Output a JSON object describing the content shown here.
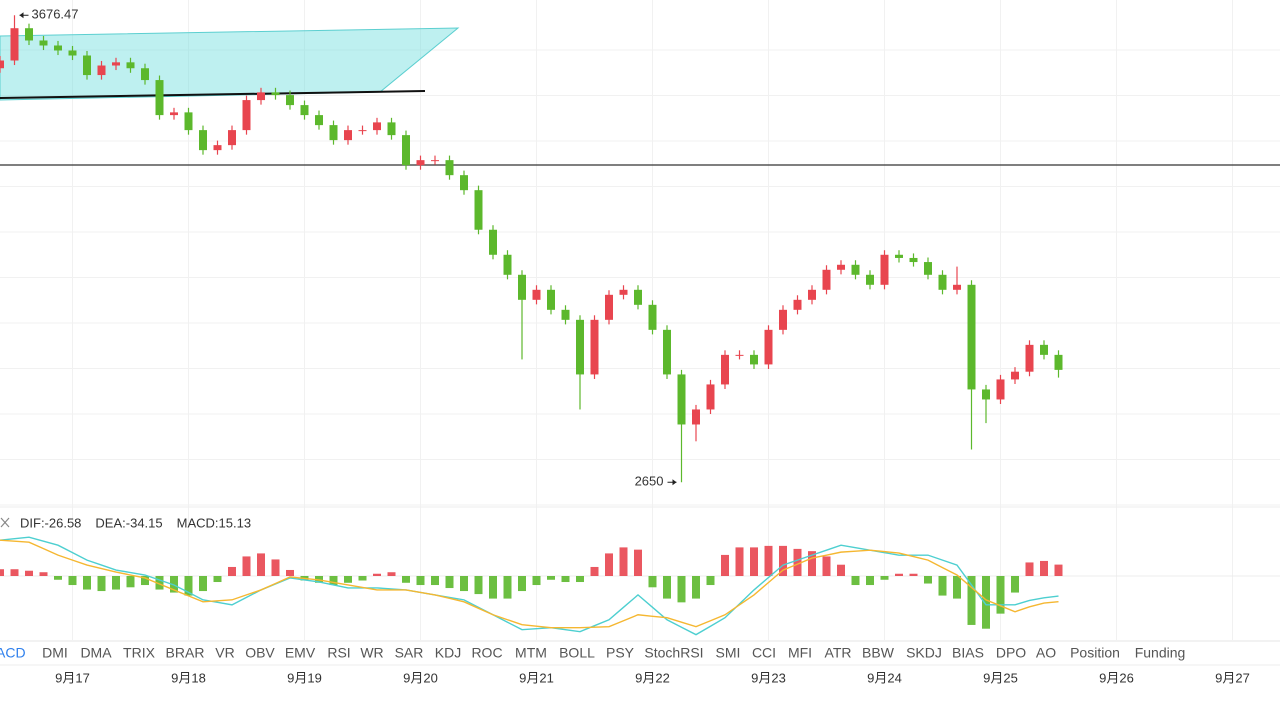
{
  "chart_data": [
    {
      "type": "candlestick",
      "categories": [
        null,
        null,
        null,
        null,
        null,
        "9月17",
        null,
        null,
        null,
        null,
        null,
        null,
        null,
        "9月18",
        null,
        null,
        null,
        null,
        null,
        null,
        null,
        "9月19",
        null,
        null,
        null,
        null,
        null,
        null,
        null,
        "9月20",
        null,
        null,
        null,
        null,
        null,
        null,
        null,
        "9月21",
        null,
        null,
        null,
        null,
        null,
        null,
        null,
        "9月22",
        null,
        null,
        null,
        null,
        null,
        null,
        null,
        "9月23",
        null,
        null,
        null,
        null,
        null,
        null,
        null,
        "9月24",
        null,
        null,
        null,
        null,
        null,
        null,
        null,
        "9月25",
        null,
        null,
        null,
        null,
        null,
        null,
        null,
        "9月26",
        null,
        null,
        null,
        null,
        null,
        null,
        null,
        "9月27",
        null,
        null
      ],
      "open": [
        3560,
        3577,
        3648,
        3621,
        3610,
        3599,
        3588,
        3545,
        3566,
        3573,
        3560,
        3534,
        3457,
        3463,
        3424,
        3380,
        3391,
        3424,
        3490,
        3507,
        3501,
        3479,
        3457,
        3435,
        3402,
        3424,
        3424,
        3441,
        3413,
        3347,
        3358,
        3358,
        3325,
        3292,
        3205,
        3150,
        3106,
        3051,
        3073,
        3029,
        3007,
        2887,
        3007,
        3062,
        3073,
        3040,
        2985,
        2887,
        2777,
        2810,
        2865,
        2930,
        2930,
        2909,
        2985,
        3029,
        3051,
        3073,
        3117,
        3128,
        3106,
        3084,
        3150,
        3143,
        3134,
        3106,
        3073,
        3084,
        2854,
        2832,
        2876,
        2893,
        2952,
        2930,
        null,
        null,
        null,
        null,
        null,
        null,
        null,
        null,
        null,
        null,
        null,
        null,
        null,
        null
      ],
      "high": [
        3587,
        3676.47,
        3658,
        3631,
        3620,
        3609,
        3598,
        3576,
        3583,
        3583,
        3570,
        3544,
        3473,
        3473,
        3434,
        3401,
        3434,
        3500,
        3517,
        3517,
        3511,
        3489,
        3467,
        3445,
        3434,
        3434,
        3451,
        3451,
        3423,
        3368,
        3368,
        3368,
        3335,
        3302,
        3215,
        3160,
        3116,
        3083,
        3083,
        3039,
        3017,
        3017,
        3072,
        3083,
        3083,
        3050,
        2995,
        2897,
        2820,
        2875,
        2940,
        2940,
        2940,
        2995,
        3039,
        3061,
        3083,
        3127,
        3138,
        3138,
        3116,
        3160,
        3160,
        3153,
        3144,
        3116,
        3124,
        3094,
        2864,
        2886,
        2903,
        2962,
        2962,
        2940,
        null,
        null,
        null,
        null,
        null,
        null,
        null,
        null,
        null,
        null,
        null,
        null,
        null,
        null
      ],
      "low": [
        3550,
        3567,
        3611,
        3600,
        3589,
        3578,
        3535,
        3535,
        3556,
        3550,
        3524,
        3447,
        3447,
        3414,
        3370,
        3370,
        3381,
        3414,
        3480,
        3491,
        3469,
        3447,
        3425,
        3392,
        3392,
        3414,
        3414,
        3403,
        3337,
        3337,
        3348,
        3315,
        3282,
        3195,
        3140,
        3096,
        2920,
        3041,
        3019,
        2997,
        2810,
        2877,
        2997,
        3052,
        3030,
        2975,
        2877,
        2650,
        2740,
        2800,
        2855,
        2920,
        2899,
        2899,
        2975,
        3019,
        3041,
        3063,
        3107,
        3096,
        3074,
        3074,
        3133,
        3124,
        3096,
        3063,
        3063,
        2722,
        2780,
        2822,
        2866,
        2883,
        2920,
        2880,
        null,
        null,
        null,
        null,
        null,
        null,
        null,
        null,
        null,
        null,
        null,
        null,
        null,
        null
      ],
      "close": [
        3577,
        3648,
        3621,
        3610,
        3599,
        3588,
        3545,
        3566,
        3573,
        3560,
        3534,
        3457,
        3463,
        3424,
        3380,
        3391,
        3424,
        3490,
        3507,
        3501,
        3479,
        3457,
        3435,
        3402,
        3424,
        3424,
        3441,
        3413,
        3347,
        3358,
        3358,
        3325,
        3292,
        3205,
        3150,
        3106,
        3051,
        3073,
        3029,
        3007,
        2887,
        3007,
        3062,
        3073,
        3040,
        2985,
        2887,
        2777,
        2810,
        2865,
        2930,
        2930,
        2909,
        2985,
        3029,
        3051,
        3073,
        3117,
        3128,
        3106,
        3084,
        3150,
        3143,
        3134,
        3106,
        3073,
        3084,
        2854,
        2832,
        2876,
        2893,
        2952,
        2930,
        2897,
        null,
        null,
        null,
        null,
        null,
        null,
        null,
        null,
        null,
        null,
        null,
        null,
        null,
        null
      ],
      "up_color": "#e8454f",
      "down_color": "#5cb82c",
      "ylim": [
        2600,
        3710
      ],
      "grid": true
    },
    {
      "type": "macd",
      "ylim": [
        -85,
        85
      ],
      "up_color": "#e8454f",
      "down_color": "#5cb82c",
      "series": [
        {
          "name": "DIF:-26.58",
          "type": "line",
          "color": "#4dcfd0",
          "values": [
            47.5,
            49.5,
            51.5,
            46.2,
            40.9,
            31,
            21.1,
            14.5,
            7.9,
            4.6,
            1.3,
            -5.3,
            -11.9,
            -21.8,
            -31.7,
            -35,
            -38.3,
            -28.4,
            -18.5,
            -10.6,
            -2.6,
            -5.3,
            -7.9,
            -11.9,
            -15.8,
            -15.8,
            -15.8,
            -17.2,
            -18.5,
            -21.8,
            -25.1,
            -28.4,
            -31.7,
            -41.6,
            -51.5,
            -61.4,
            -71.3,
            -70,
            -68.6,
            -71.3,
            -73.9,
            -66,
            -58.1,
            -41.6,
            -25.1,
            -41.6,
            -58.1,
            -68,
            -77.9,
            -66.7,
            -55.4,
            -37,
            -18.5,
            -2,
            14.5,
            21.1,
            27.7,
            34.3,
            40.9,
            37.6,
            34.3,
            31,
            27.7,
            27.7,
            27.7,
            21.1,
            14.5,
            -11.9,
            -38.3,
            -38.3,
            -38.3,
            -32.4,
            -29,
            -26.58,
            null,
            null,
            null,
            null,
            null,
            null,
            null,
            null,
            null,
            null,
            null,
            null,
            null,
            null
          ]
        },
        {
          "name": "DEA:-34.15",
          "type": "line",
          "color": "#f5b731",
          "values": [
            47.5,
            46.2,
            44.9,
            36.3,
            27.7,
            21.1,
            14.5,
            9.9,
            5.3,
            1.3,
            -2.6,
            -10.6,
            -18.5,
            -26.4,
            -34.3,
            -33,
            -31.7,
            -25.1,
            -18.5,
            -9.9,
            -1.3,
            -3.3,
            -5.3,
            -8.6,
            -11.9,
            -15.2,
            -18.5,
            -18.5,
            -18.5,
            -21.8,
            -25.1,
            -29.7,
            -34.3,
            -42.9,
            -51.5,
            -58.1,
            -64.7,
            -66.7,
            -68.6,
            -68.6,
            -68.6,
            -68,
            -67.3,
            -59.4,
            -51.5,
            -53.5,
            -55.4,
            -61.4,
            -67.3,
            -59.4,
            -51.5,
            -38.3,
            -25.1,
            -8.6,
            7.9,
            15.8,
            23.8,
            27.7,
            31.7,
            33,
            34.3,
            32.4,
            30.4,
            25.8,
            21.1,
            11.2,
            1.3,
            -15.2,
            -31.7,
            -39.6,
            -47.5,
            -40.9,
            -36,
            -34.15,
            null,
            null,
            null,
            null,
            null,
            null,
            null,
            null,
            null,
            null,
            null,
            null,
            null,
            null
          ]
        },
        {
          "name": "MACD:15.13",
          "type": "bar",
          "color": "#26b8a8",
          "values": [
            9,
            9,
            7,
            5,
            -5,
            -12,
            -18,
            -20,
            -18,
            -15,
            -12,
            -18,
            -22,
            -26,
            -20,
            -8,
            12,
            26,
            30,
            22,
            8,
            -6,
            -9,
            -12,
            -9,
            -6,
            3,
            5,
            -9,
            -12,
            -12,
            -16,
            -20,
            -24,
            -30,
            -30,
            -20,
            -12,
            -5,
            -8,
            -8,
            12,
            30,
            38,
            35,
            -15,
            -30,
            -35,
            -30,
            -12,
            28,
            38,
            38,
            40,
            40,
            36,
            33,
            26,
            15,
            -12,
            -12,
            -5,
            3,
            3,
            -10,
            -26,
            -30,
            -65,
            -70,
            -50,
            -22,
            18,
            20,
            15.13,
            null,
            null,
            null,
            null,
            null,
            null,
            null,
            null,
            null,
            null,
            null,
            null,
            null,
            null
          ]
        }
      ]
    }
  ],
  "indicator_tabs": [
    "MACD",
    "DMI",
    "DMA",
    "TRIX",
    "BRAR",
    "VR",
    "OBV",
    "EMV",
    "RSI",
    "WR",
    "SAR",
    "KDJ",
    "ROC",
    "MTM",
    "BOLL",
    "PSY",
    "StochRSI",
    "SMI",
    "CCI",
    "MFI",
    "ATR",
    "BBW",
    "SKDJ",
    "BIAS",
    "DPO",
    "AO",
    "Position",
    "Funding"
  ]
}
